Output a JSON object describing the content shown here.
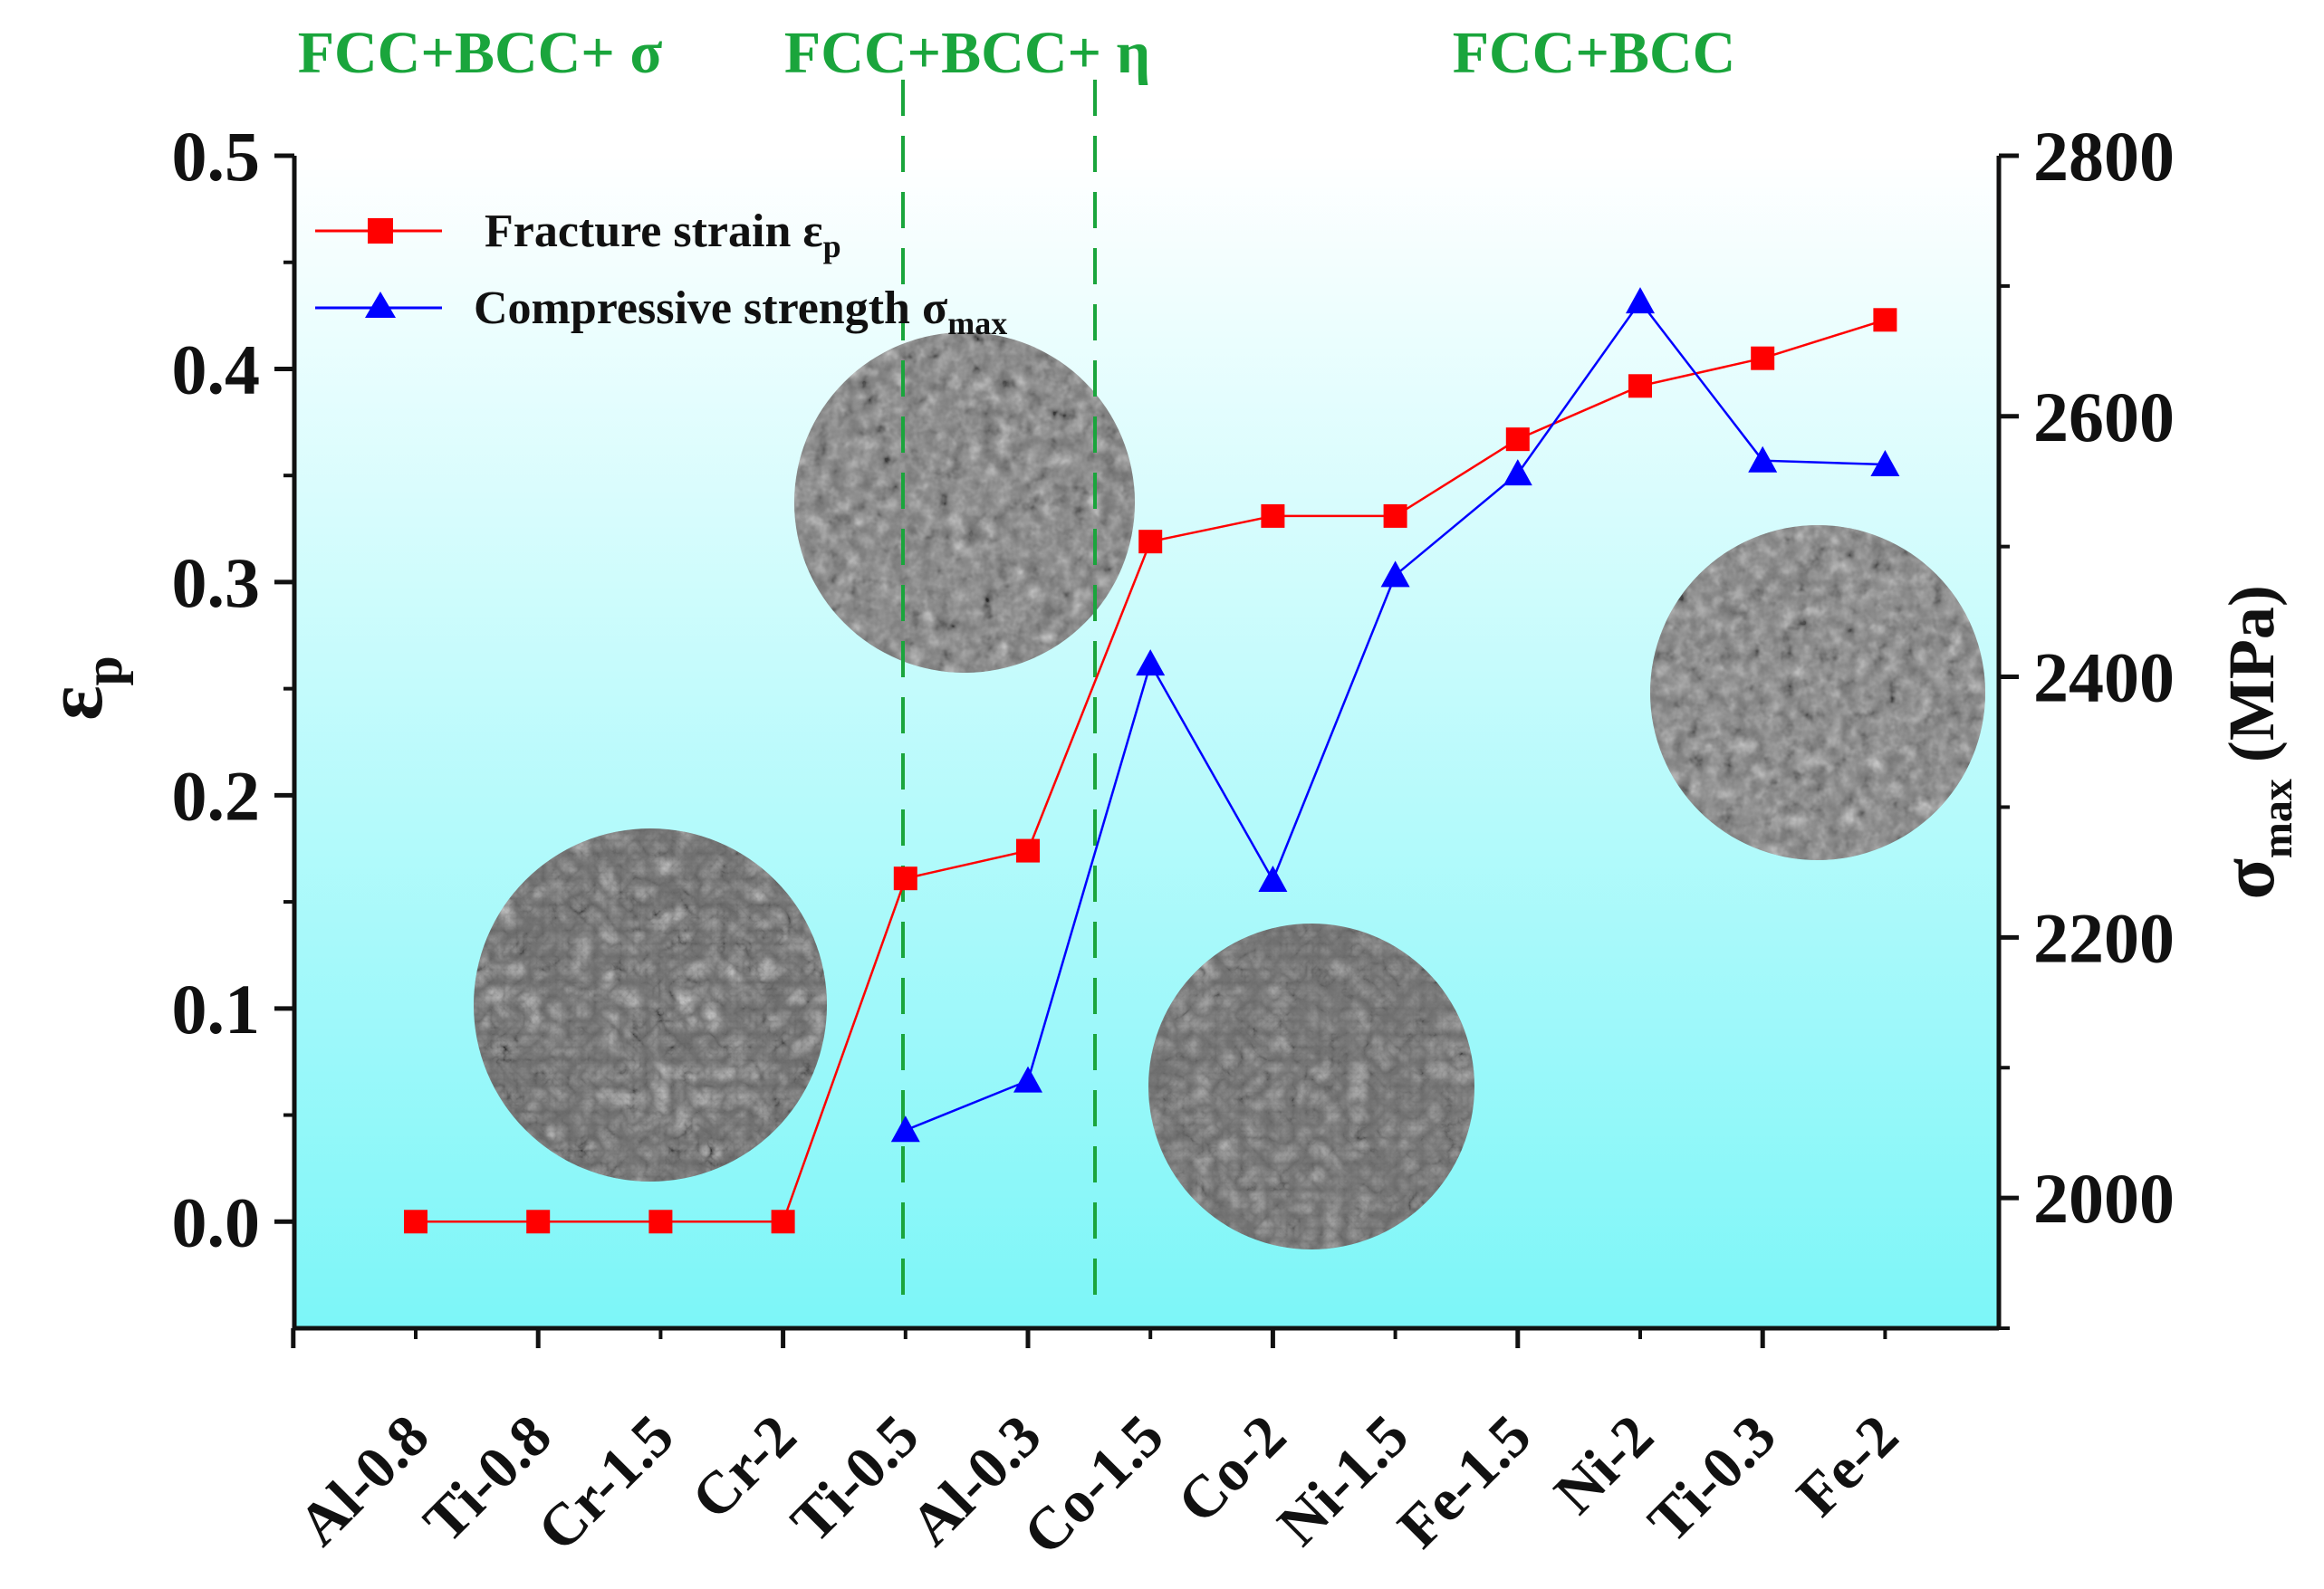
{
  "chart_data": {
    "type": "line",
    "categories": [
      "Al-0.8",
      "Ti-0.8",
      "Cr-1.5",
      "Cr-2",
      "Ti-0.5",
      "Al-0.3",
      "Co-1.5",
      "Co-2",
      "Ni-1.5",
      "Fe-1.5",
      "Ni-2",
      "Ti-0.3",
      "Fe-2"
    ],
    "left_axis": {
      "label_main": "ε",
      "label_sub": "p",
      "ylim": [
        -0.05,
        0.5
      ],
      "ticks": [
        "0.0",
        "0.1",
        "0.2",
        "0.3",
        "0.4",
        "0.5"
      ]
    },
    "right_axis": {
      "label_main": "σ",
      "label_sub": "max",
      "label_unit": " (MPa)",
      "ylim": [
        1900,
        2800
      ],
      "ticks": [
        "2000",
        "2200",
        "2400",
        "2600",
        "2800"
      ]
    },
    "series": [
      {
        "name": "Fracture strain εp",
        "legend_main": "Fracture strain ε",
        "legend_sub": "p",
        "axis": "left",
        "marker": "square",
        "color": "#ff0000",
        "values": [
          0.0,
          0.0,
          0.0,
          0.0,
          0.161,
          0.174,
          0.319,
          0.331,
          0.331,
          0.367,
          0.392,
          0.405,
          0.423
        ]
      },
      {
        "name": "Compressive strength σmax",
        "legend_main": "Compressive strength σ",
        "legend_sub": "max",
        "axis": "right",
        "marker": "triangle",
        "color": "#0000ff",
        "values": [
          null,
          null,
          null,
          null,
          2052,
          2090,
          2410,
          2244,
          2478,
          2556,
          2688,
          2566,
          2563
        ]
      }
    ],
    "phase_regions": [
      {
        "label": "FCC+BCC+ σ"
      },
      {
        "label": "FCC+BCC+ η"
      },
      {
        "label": "FCC+BCC"
      }
    ],
    "background_gradient": [
      "#ffffff",
      "#7cf6f8"
    ],
    "inset_images": [
      "fracture-micrograph",
      "fracture-micrograph",
      "fracture-micrograph",
      "fracture-micrograph"
    ]
  }
}
